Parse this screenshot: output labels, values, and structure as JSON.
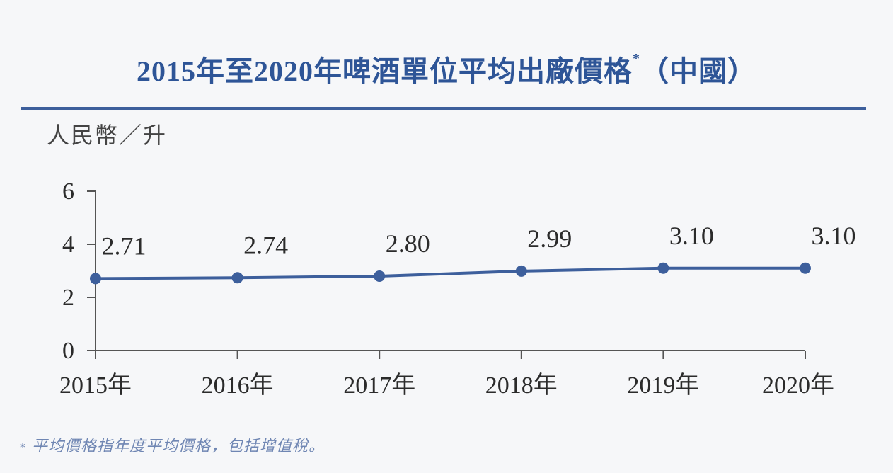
{
  "title": {
    "text": "2015年至2020年啤酒單位平均出廠價格",
    "marker": "*",
    "suffix": "（中國）"
  },
  "unit_label": "人民幣／升",
  "footnote": {
    "marker": "*",
    "text": "平均價格指年度平均價格，包括增值稅。"
  },
  "colors": {
    "line": "#3d5f9c",
    "title": "#2e5597",
    "footnote": "#6f86b3"
  },
  "chart_data": {
    "type": "line",
    "title": "2015年至2020年啤酒單位平均出廠價格*（中國）",
    "ylabel": "人民幣／升",
    "xlabel": "",
    "categories": [
      "2015年",
      "2016年",
      "2017年",
      "2018年",
      "2019年",
      "2020年"
    ],
    "values": [
      2.71,
      2.74,
      2.8,
      2.99,
      3.1,
      3.1
    ],
    "value_labels": [
      "2.71",
      "2.74",
      "2.80",
      "2.99",
      "3.10",
      "3.10"
    ],
    "ylim": [
      0,
      6
    ],
    "yticks": [
      0,
      2,
      4,
      6
    ],
    "grid": false,
    "legend": "none"
  }
}
